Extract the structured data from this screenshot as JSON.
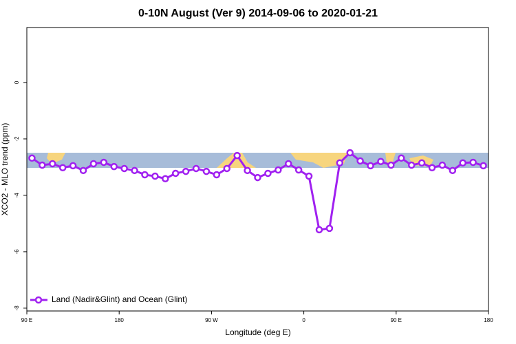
{
  "chart_data": {
    "type": "line",
    "title": "0-10N August (Ver 9)   2014-09-06 to 2020-01-21",
    "xlabel": "Longitude (deg E)",
    "ylabel": "XCO2 - MLO trend (ppm)",
    "xlim": [
      90,
      540
    ],
    "ylim": [
      -8.1,
      1.95
    ],
    "xticks": [
      {
        "value": 90,
        "label": "90 E"
      },
      180,
      {
        "value": 270,
        "label": "90 W"
      },
      {
        "value": 360,
        "label": "0"
      },
      {
        "value": 450,
        "label": "90 E"
      },
      {
        "value": 540,
        "label": "180"
      }
    ],
    "yticks": [
      0,
      -2,
      -4,
      -6,
      -8
    ],
    "legend": "bottom-left",
    "x": [
      95,
      105,
      115,
      125,
      135,
      145,
      155,
      165,
      175,
      185,
      195,
      205,
      215,
      225,
      235,
      245,
      255,
      265,
      275,
      285,
      295,
      305,
      315,
      325,
      335,
      345,
      355,
      365,
      375,
      385,
      395,
      405,
      415,
      425,
      435,
      445,
      455,
      465,
      475,
      485,
      495,
      505,
      515,
      525,
      535
    ],
    "series": [
      {
        "name": "Land (Nadir&Glint) and Ocean (Glint)",
        "color": "#a020f0",
        "values": [
          -2.68,
          -2.93,
          -2.88,
          -3.02,
          -2.95,
          -3.12,
          -2.88,
          -2.83,
          -2.98,
          -3.05,
          -3.12,
          -3.27,
          -3.32,
          -3.41,
          -3.22,
          -3.15,
          -3.05,
          -3.15,
          -3.27,
          -3.05,
          -2.59,
          -3.12,
          -3.37,
          -3.22,
          -3.1,
          -2.88,
          -3.1,
          -3.32,
          -5.22,
          -5.17,
          -2.85,
          -2.49,
          -2.78,
          -2.95,
          -2.8,
          -2.93,
          -2.68,
          -2.93,
          -2.85,
          -3.02,
          -2.93,
          -3.12,
          -2.85,
          -2.83,
          -2.95
        ]
      }
    ]
  }
}
